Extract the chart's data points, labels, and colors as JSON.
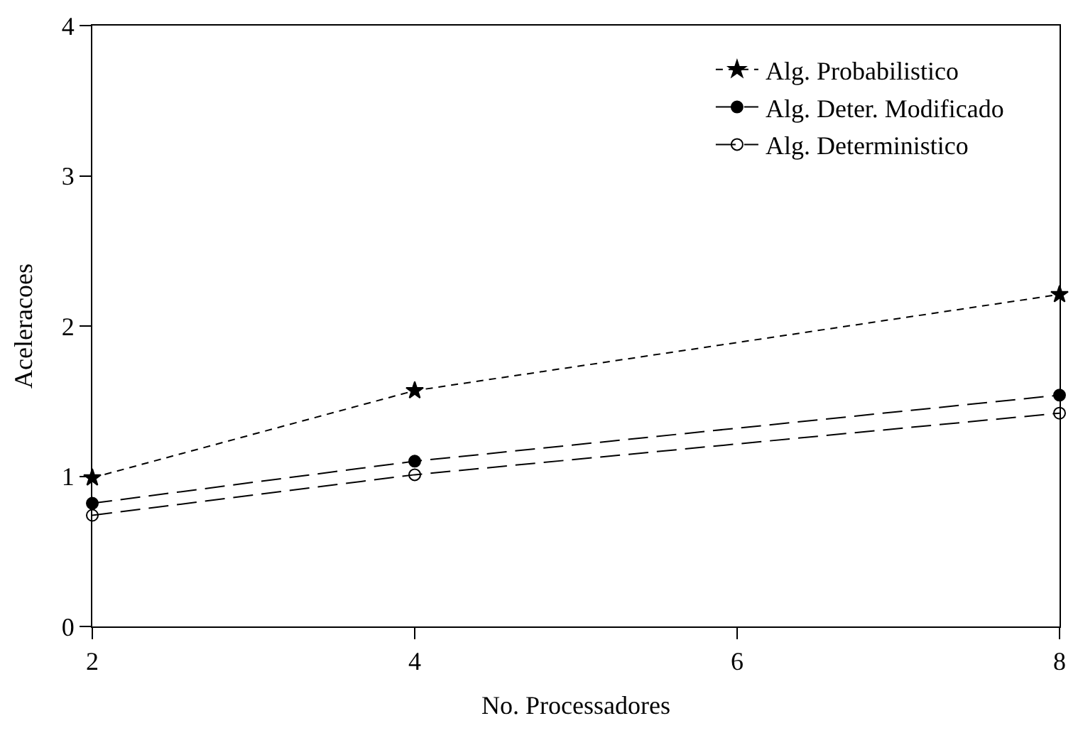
{
  "chart_data": {
    "type": "line",
    "xlabel": "No. Processadores",
    "ylabel": "Aceleracoes",
    "x": [
      2,
      4,
      8
    ],
    "xlim": [
      2,
      8
    ],
    "xticks": [
      2,
      4,
      6,
      8
    ],
    "ylim": [
      0,
      4
    ],
    "yticks": [
      0,
      1,
      2,
      3,
      4
    ],
    "legend": "top right",
    "series": [
      {
        "name": "Alg. Probabilistico",
        "color": "#000000",
        "marker": "star",
        "line_style": "dotted",
        "values": [
          0.99,
          1.57,
          2.21
        ]
      },
      {
        "name": "Alg. Deter. Modificado",
        "color": "#000000",
        "marker": "circle",
        "line_style": "dashed",
        "values": [
          0.82,
          1.1,
          1.54
        ]
      },
      {
        "name": "Alg. Deterministico",
        "color": "#000000",
        "marker": "circle-open",
        "line_style": "dashed",
        "values": [
          0.74,
          1.01,
          1.42
        ]
      }
    ]
  }
}
